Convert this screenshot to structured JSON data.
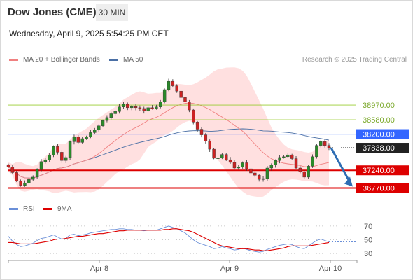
{
  "header": {
    "title": "Dow Jones (CME)",
    "timeframe": "30 MIN"
  },
  "timestamp": "Wednesday, April 9, 2025 5:54:25 PM CET",
  "legend": {
    "ma20_label": "MA 20 + Bollinger Bands",
    "ma50_label": "MA 50",
    "rsi_label": "RSI",
    "ma9_label": "9MA"
  },
  "credit": "Research © 2025 Trading Central",
  "colors": {
    "ma20": "#f08080",
    "bands": "#ffd6d6",
    "ma50": "#4a6fa5",
    "support": "#dd0000",
    "pivot": "#3366ff",
    "resistance": "#9acd32",
    "rsi": "#6a8fd8",
    "rsi_ma9": "#dd0000",
    "arrow": "#2e6db3"
  },
  "chart_data": [
    {
      "type": "candlestick",
      "title": "Dow Jones (CME) 30 MIN",
      "x_ticks": [
        "Apr 8",
        "Apr 9",
        "Apr 10"
      ],
      "ylim": [
        36650,
        39900
      ],
      "levels": [
        {
          "label": "38970.00",
          "value": 38970,
          "kind": "resistance"
        },
        {
          "label": "38580.00",
          "value": 38580,
          "kind": "resistance"
        },
        {
          "label": "38200.00",
          "value": 38200,
          "kind": "pivot"
        },
        {
          "label": "37838.00",
          "value": 37838,
          "kind": "last"
        },
        {
          "label": "37240.00",
          "value": 37240,
          "kind": "support"
        },
        {
          "label": "36770.00",
          "value": 36770,
          "kind": "support"
        }
      ],
      "close_series": [
        37330,
        37180,
        36960,
        36840,
        36900,
        37000,
        37060,
        37260,
        37470,
        37520,
        37650,
        37870,
        37720,
        37500,
        37580,
        38000,
        38120,
        37980,
        38080,
        38130,
        38240,
        38310,
        38420,
        38560,
        38640,
        38740,
        38800,
        38920,
        38990,
        38900,
        38930,
        38900,
        38880,
        38820,
        38900,
        38880,
        38920,
        39060,
        39380,
        39600,
        39480,
        39340,
        39170,
        39050,
        38840,
        38520,
        38330,
        38180,
        38020,
        37800,
        37560,
        37570,
        37660,
        37520,
        37450,
        37300,
        37330,
        37440,
        37280,
        37170,
        37110,
        37000,
        37020,
        37300,
        37380,
        37500,
        37580,
        37600,
        37650,
        37550,
        37300,
        37200,
        37060,
        37350,
        37600,
        37900,
        38000,
        37900,
        37838
      ]
    },
    {
      "type": "line",
      "title": "RSI",
      "y_ticks": [
        70,
        50,
        30
      ],
      "ylim": [
        22,
        78
      ],
      "series": [
        {
          "name": "RSI",
          "values": [
            55,
            48,
            43,
            40,
            41,
            43,
            45,
            49,
            52,
            53,
            55,
            57,
            54,
            51,
            52,
            57,
            58,
            56,
            57,
            58,
            60,
            61,
            62,
            63,
            64,
            65,
            65,
            66,
            66,
            65,
            65,
            64,
            64,
            63,
            64,
            64,
            64,
            66,
            68,
            70,
            68,
            66,
            63,
            60,
            55,
            50,
            46,
            44,
            42,
            40,
            37,
            38,
            40,
            38,
            37,
            35,
            36,
            38,
            36,
            34,
            33,
            32,
            33,
            36,
            38,
            40,
            42,
            43,
            44,
            43,
            40,
            38,
            37,
            41,
            45,
            49,
            51,
            49,
            47
          ]
        },
        {
          "name": "9MA",
          "values": [
            46,
            46,
            45,
            44,
            44,
            44,
            44,
            45,
            46,
            47,
            48,
            50,
            51,
            51,
            52,
            53,
            54,
            55,
            55,
            56,
            57,
            58,
            59,
            59,
            60,
            61,
            62,
            63,
            63,
            64,
            64,
            64,
            64,
            64,
            64,
            64,
            64,
            64,
            65,
            65,
            66,
            66,
            65,
            64,
            63,
            61,
            58,
            55,
            52,
            49,
            46,
            43,
            41,
            40,
            39,
            38,
            37,
            37,
            37,
            36,
            35,
            35,
            34,
            34,
            35,
            36,
            37,
            38,
            40,
            41,
            41,
            41,
            41,
            41,
            42,
            43,
            44,
            45,
            46
          ]
        }
      ]
    }
  ]
}
